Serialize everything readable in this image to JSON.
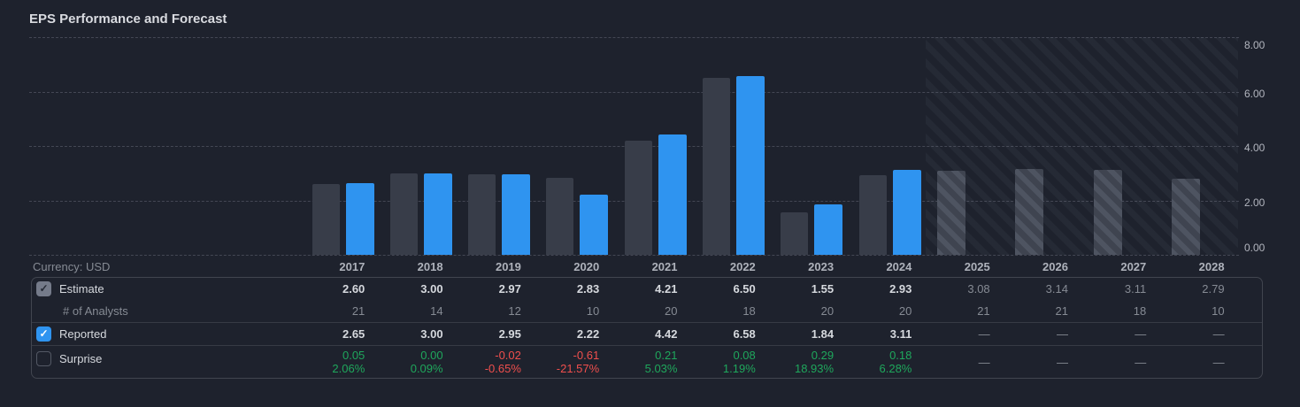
{
  "title": "EPS Performance and Forecast",
  "currency_label": "Currency: USD",
  "colors": {
    "background": "#1e222d",
    "estimate_bar": "#383d49",
    "forecast_bar": "#3f4450",
    "reported_bar": "#2f94f0",
    "positive_green": "#1fa75c",
    "negative_red": "#ef4f4d",
    "white_text": "#d6d9de",
    "gray_text": "#868b94"
  },
  "chart_data": {
    "type": "bar",
    "title": "EPS Performance and Forecast",
    "categories": [
      "2017",
      "2018",
      "2019",
      "2020",
      "2021",
      "2022",
      "2023",
      "2024",
      "2025",
      "2026",
      "2027",
      "2028"
    ],
    "series": [
      {
        "name": "Estimate",
        "values": [
          2.6,
          3.0,
          2.97,
          2.83,
          4.21,
          6.5,
          1.55,
          2.93,
          3.08,
          3.14,
          3.11,
          2.79
        ]
      },
      {
        "name": "Reported",
        "values": [
          2.65,
          3.0,
          2.95,
          2.22,
          4.42,
          6.58,
          1.84,
          3.11,
          null,
          null,
          null,
          null
        ]
      }
    ],
    "forecast_start_index": 8,
    "ylim": [
      0,
      8
    ],
    "yticks": [
      "8.00",
      "6.00",
      "4.00",
      "2.00",
      "0.00"
    ],
    "grid": "horizontal-dashed",
    "y_axis_position": "right",
    "forecast_region_hatched": true
  },
  "table": {
    "rows": [
      {
        "id": "estimate",
        "label": "Estimate",
        "checkbox": "checked-gray",
        "values": [
          "2.60",
          "3.00",
          "2.97",
          "2.83",
          "4.21",
          "6.50",
          "1.55",
          "2.93",
          "3.08",
          "3.14",
          "3.11",
          "2.79"
        ]
      },
      {
        "id": "analysts",
        "label": "# of Analysts",
        "checkbox": null,
        "values": [
          "21",
          "14",
          "12",
          "10",
          "20",
          "18",
          "20",
          "20",
          "21",
          "21",
          "18",
          "10"
        ]
      },
      {
        "id": "reported",
        "label": "Reported",
        "checkbox": "checked-blue",
        "values": [
          "2.65",
          "3.00",
          "2.95",
          "2.22",
          "4.42",
          "6.58",
          "1.84",
          "3.11",
          "—",
          "—",
          "—",
          "—"
        ]
      },
      {
        "id": "surprise",
        "label": "Surprise",
        "checkbox": "unchecked",
        "values": [
          {
            "value": "0.05",
            "pct": "2.06%",
            "tone": "green"
          },
          {
            "value": "0.00",
            "pct": "0.09%",
            "tone": "green"
          },
          {
            "value": "-0.02",
            "pct": "-0.65%",
            "tone": "red"
          },
          {
            "value": "-0.61",
            "pct": "-21.57%",
            "tone": "red"
          },
          {
            "value": "0.21",
            "pct": "5.03%",
            "tone": "green"
          },
          {
            "value": "0.08",
            "pct": "1.19%",
            "tone": "green"
          },
          {
            "value": "0.29",
            "pct": "18.93%",
            "tone": "green"
          },
          {
            "value": "0.18",
            "pct": "6.28%",
            "tone": "green"
          },
          "—",
          "—",
          "—",
          "—"
        ]
      }
    ],
    "checkmark_glyph": "✓",
    "empty_value_glyph": "—"
  }
}
